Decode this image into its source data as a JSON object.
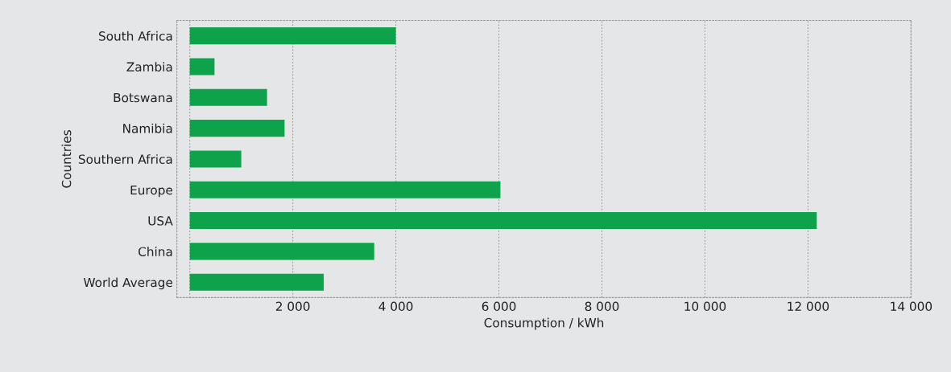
{
  "chart_data": {
    "type": "bar",
    "orientation": "horizontal",
    "categories": [
      "South Africa",
      "Zambia",
      "Botswana",
      "Namibia",
      "Southern Africa",
      "Europe",
      "USA",
      "China",
      "World Average"
    ],
    "values": [
      4000,
      480,
      1500,
      1840,
      1000,
      6030,
      12170,
      3580,
      2600
    ],
    "color": "#0ea34a",
    "xlabel": "Consumption / kWh",
    "ylabel": "Countries",
    "xlim": [
      -250,
      14000
    ],
    "xticks": [
      {
        "value": 0,
        "label": null
      },
      {
        "value": 2000,
        "label": "2 000"
      },
      {
        "value": 4000,
        "label": "4 000"
      },
      {
        "value": 6000,
        "label": "6 000"
      },
      {
        "value": 8000,
        "label": "8 000"
      },
      {
        "value": 10000,
        "label": "10 000"
      },
      {
        "value": 12000,
        "label": "12 000"
      },
      {
        "value": 14000,
        "label": "14 000"
      }
    ],
    "grid": "x"
  }
}
